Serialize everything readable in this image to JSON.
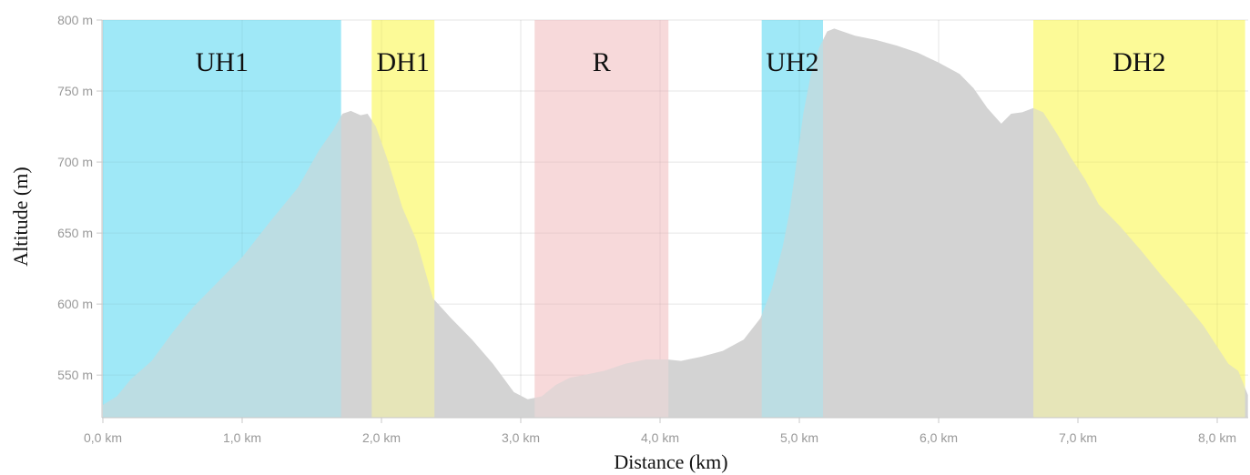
{
  "chart_data": {
    "type": "area",
    "xlabel": "Distance (km)",
    "ylabel": "Altitude (m)",
    "xlim": [
      0,
      8.22
    ],
    "ylim": [
      520,
      800
    ],
    "grid": true,
    "x_ticks": [
      {
        "value": 0,
        "label": "0,0 km"
      },
      {
        "value": 1,
        "label": "1,0 km"
      },
      {
        "value": 2,
        "label": "2,0 km"
      },
      {
        "value": 3,
        "label": "3,0 km"
      },
      {
        "value": 4,
        "label": "4,0 km"
      },
      {
        "value": 5,
        "label": "5,0 km"
      },
      {
        "value": 6,
        "label": "6,0 km"
      },
      {
        "value": 7,
        "label": "7,0 km"
      },
      {
        "value": 8,
        "label": "8,0 km"
      }
    ],
    "y_ticks": [
      {
        "value": 550,
        "label": "550 m"
      },
      {
        "value": 600,
        "label": "600 m"
      },
      {
        "value": 650,
        "label": "650 m"
      },
      {
        "value": 700,
        "label": "700 m"
      },
      {
        "value": 750,
        "label": "750 m"
      },
      {
        "value": 800,
        "label": "800 m"
      }
    ],
    "fill_color": "#d3d3d3",
    "series": [
      {
        "points": [
          [
            0.0,
            529
          ],
          [
            0.1,
            535
          ],
          [
            0.2,
            547
          ],
          [
            0.35,
            560
          ],
          [
            0.5,
            580
          ],
          [
            0.65,
            598
          ],
          [
            0.8,
            613
          ],
          [
            1.0,
            633
          ],
          [
            1.2,
            658
          ],
          [
            1.4,
            682
          ],
          [
            1.55,
            708
          ],
          [
            1.65,
            722
          ],
          [
            1.72,
            734
          ],
          [
            1.78,
            736
          ],
          [
            1.85,
            733
          ],
          [
            1.9,
            734
          ],
          [
            1.96,
            725
          ],
          [
            2.05,
            700
          ],
          [
            2.15,
            668
          ],
          [
            2.25,
            645
          ],
          [
            2.37,
            604
          ],
          [
            2.5,
            590
          ],
          [
            2.65,
            575
          ],
          [
            2.8,
            558
          ],
          [
            2.95,
            538
          ],
          [
            3.05,
            533
          ],
          [
            3.15,
            535
          ],
          [
            3.25,
            543
          ],
          [
            3.35,
            548
          ],
          [
            3.45,
            550
          ],
          [
            3.6,
            553
          ],
          [
            3.75,
            558
          ],
          [
            3.9,
            561
          ],
          [
            4.05,
            561
          ],
          [
            4.15,
            560
          ],
          [
            4.3,
            563
          ],
          [
            4.45,
            567
          ],
          [
            4.6,
            575
          ],
          [
            4.72,
            590
          ],
          [
            4.8,
            610
          ],
          [
            4.88,
            640
          ],
          [
            4.93,
            665
          ],
          [
            4.98,
            700
          ],
          [
            5.03,
            735
          ],
          [
            5.08,
            760
          ],
          [
            5.14,
            780
          ],
          [
            5.2,
            792
          ],
          [
            5.25,
            794
          ],
          [
            5.4,
            789
          ],
          [
            5.55,
            786
          ],
          [
            5.7,
            782
          ],
          [
            5.85,
            777
          ],
          [
            6.0,
            770
          ],
          [
            6.15,
            762
          ],
          [
            6.25,
            752
          ],
          [
            6.35,
            738
          ],
          [
            6.45,
            727
          ],
          [
            6.52,
            734
          ],
          [
            6.6,
            735
          ],
          [
            6.68,
            738
          ],
          [
            6.75,
            735
          ],
          [
            6.85,
            720
          ],
          [
            6.95,
            703
          ],
          [
            7.05,
            688
          ],
          [
            7.15,
            670
          ],
          [
            7.3,
            655
          ],
          [
            7.45,
            638
          ],
          [
            7.6,
            620
          ],
          [
            7.75,
            603
          ],
          [
            7.9,
            585
          ],
          [
            8.0,
            570
          ],
          [
            8.08,
            558
          ],
          [
            8.15,
            553
          ],
          [
            8.22,
            536
          ]
        ]
      }
    ],
    "zones": [
      {
        "label": "UH1",
        "x0": 0.0,
        "x1": 1.71,
        "color": "#9fe8f7"
      },
      {
        "label": "DH1",
        "x0": 1.93,
        "x1": 2.38,
        "color": "#fcfa97"
      },
      {
        "label": "R",
        "x0": 3.1,
        "x1": 4.06,
        "color": "#f7d9da"
      },
      {
        "label": "UH2",
        "x0": 4.73,
        "x1": 5.17,
        "color": "#9fe8f7"
      },
      {
        "label": "DH2",
        "x0": 6.68,
        "x1": 8.2,
        "color": "#fcfa97"
      }
    ]
  }
}
